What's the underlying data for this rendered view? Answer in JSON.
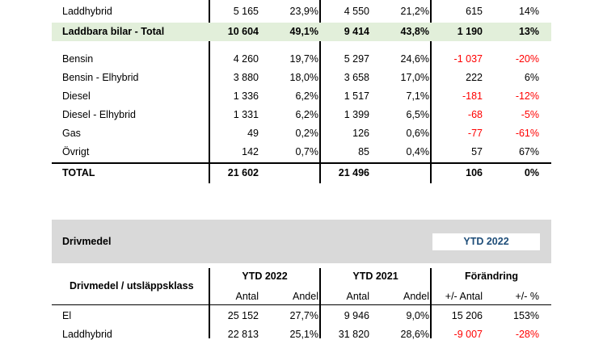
{
  "top_table": {
    "rows": [
      {
        "label": "Laddhybrid",
        "a22": "5 165",
        "s22": "23,9%",
        "a21": "4 550",
        "s21": "21,2%",
        "dA": "615",
        "dP": "14%",
        "bold": false,
        "highlight": false,
        "neg": false
      },
      {
        "label": "Laddbara bilar - Total",
        "a22": "10 604",
        "s22": "49,1%",
        "a21": "9 414",
        "s21": "43,8%",
        "dA": "1 190",
        "dP": "13%",
        "bold": true,
        "highlight": true,
        "neg": false
      },
      {
        "label": "Bensin",
        "a22": "4 260",
        "s22": "19,7%",
        "a21": "5 297",
        "s21": "24,6%",
        "dA": "-1 037",
        "dP": "-20%",
        "bold": false,
        "highlight": false,
        "neg": true
      },
      {
        "label": "Bensin - Elhybrid",
        "a22": "3 880",
        "s22": "18,0%",
        "a21": "3 658",
        "s21": "17,0%",
        "dA": "222",
        "dP": "6%",
        "bold": false,
        "highlight": false,
        "neg": false
      },
      {
        "label": "Diesel",
        "a22": "1 336",
        "s22": "6,2%",
        "a21": "1 517",
        "s21": "7,1%",
        "dA": "-181",
        "dP": "-12%",
        "bold": false,
        "highlight": false,
        "neg": true
      },
      {
        "label": "Diesel - Elhybrid",
        "a22": "1 331",
        "s22": "6,2%",
        "a21": "1 399",
        "s21": "6,5%",
        "dA": "-68",
        "dP": "-5%",
        "bold": false,
        "highlight": false,
        "neg": true
      },
      {
        "label": "Gas",
        "a22": "49",
        "s22": "0,2%",
        "a21": "126",
        "s21": "0,6%",
        "dA": "-77",
        "dP": "-61%",
        "bold": false,
        "highlight": false,
        "neg": true
      },
      {
        "label": "Övrigt",
        "a22": "142",
        "s22": "0,7%",
        "a21": "85",
        "s21": "0,4%",
        "dA": "57",
        "dP": "67%",
        "bold": false,
        "highlight": false,
        "neg": false
      },
      {
        "label": "TOTAL",
        "a22": "21 602",
        "s22": "",
        "a21": "21 496",
        "s21": "",
        "dA": "106",
        "dP": "0%",
        "bold": true,
        "highlight": false,
        "neg": false
      }
    ]
  },
  "section": {
    "title": "Drivmedel",
    "badge": "YTD 2022",
    "badge_color": "#1f4e79",
    "band_color": "#d9d9d9"
  },
  "bottom_table": {
    "header": {
      "label": "Drivmedel / utsläppsklass",
      "g1": "YTD 2022",
      "g2": "YTD 2021",
      "g3": "Förändring",
      "antal": "Antal",
      "andel": "Andel",
      "antal2": "Antal",
      "andel2": "Andel",
      "dA": "+/- Antal",
      "dP": "+/- %"
    },
    "rows": [
      {
        "label": "El",
        "a22": "25 152",
        "s22": "27,7%",
        "a21": "9 946",
        "s21": "9,0%",
        "dA": "15 206",
        "dP": "153%",
        "neg": false
      },
      {
        "label": "Laddhybrid",
        "a22": "22 813",
        "s22": "25,1%",
        "a21": "31 820",
        "s21": "28,6%",
        "dA": "-9 007",
        "dP": "-28%",
        "neg": true
      }
    ]
  }
}
